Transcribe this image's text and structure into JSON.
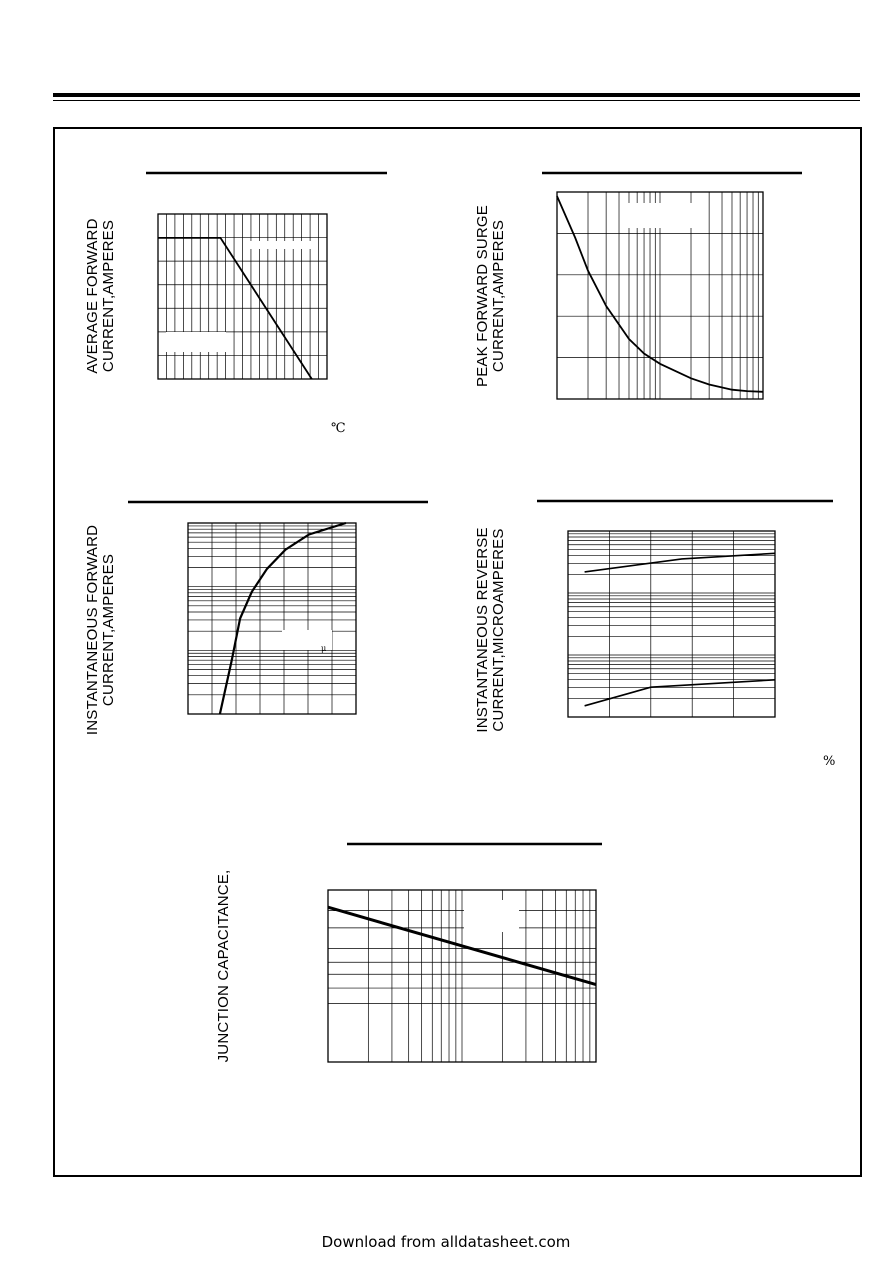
{
  "footer": {
    "text": "Download from alldatasheet.com"
  },
  "chart_data": [
    {
      "id": "fig1",
      "type": "line",
      "ylabel": [
        "AVERAGE FORWARD",
        "CURRENT,AMPERES"
      ],
      "xlabel_unit": "℃",
      "x_scale": "linear",
      "y_scale": "linear",
      "x": [
        0,
        0.37,
        0.91
      ],
      "y": [
        0.855,
        0.855,
        0
      ]
    },
    {
      "id": "fig2",
      "type": "line",
      "ylabel": [
        "PEAK FORWARD SURGE",
        "CURRENT,AMPERES"
      ],
      "x_scale": "log",
      "y_scale": "linear",
      "x": [
        1,
        1.5,
        2,
        3,
        5,
        7,
        10,
        20,
        30,
        50,
        70,
        100
      ],
      "y": [
        0.98,
        0.78,
        0.62,
        0.45,
        0.29,
        0.22,
        0.17,
        0.1,
        0.07,
        0.045,
        0.038,
        0.035
      ]
    },
    {
      "id": "fig3",
      "type": "line",
      "ylabel": [
        "INSTANTANEOUS FORWARD",
        "CURRENT,AMPERES"
      ],
      "unit_mark": "μ",
      "x_scale": "linear",
      "y_scale": "log",
      "x": [
        0.19,
        0.26,
        0.31,
        0.38,
        0.47,
        0.58,
        0.72,
        0.94
      ],
      "y": [
        0.0,
        0.28,
        0.5,
        0.64,
        0.76,
        0.86,
        0.94,
        1.0
      ]
    },
    {
      "id": "fig4",
      "type": "line",
      "ylabel": [
        "INSTANTANEOUS REVERSE",
        "CURRENT,MICROAMPERES"
      ],
      "xlabel_unit": "%",
      "x_scale": "linear",
      "y_scale": "log",
      "series": [
        {
          "x": [
            0.08,
            0.55,
            1.0
          ],
          "y": [
            0.78,
            0.85,
            0.88
          ]
        },
        {
          "x": [
            0.08,
            0.4,
            1.0
          ],
          "y": [
            0.06,
            0.16,
            0.2
          ]
        }
      ]
    },
    {
      "id": "fig5",
      "type": "line",
      "ylabel": [
        "JUNCTION CAPACITANCE,"
      ],
      "x_scale": "log",
      "y_scale": "log",
      "x": [
        0.0,
        1.0
      ],
      "y": [
        0.9,
        0.45
      ]
    }
  ]
}
